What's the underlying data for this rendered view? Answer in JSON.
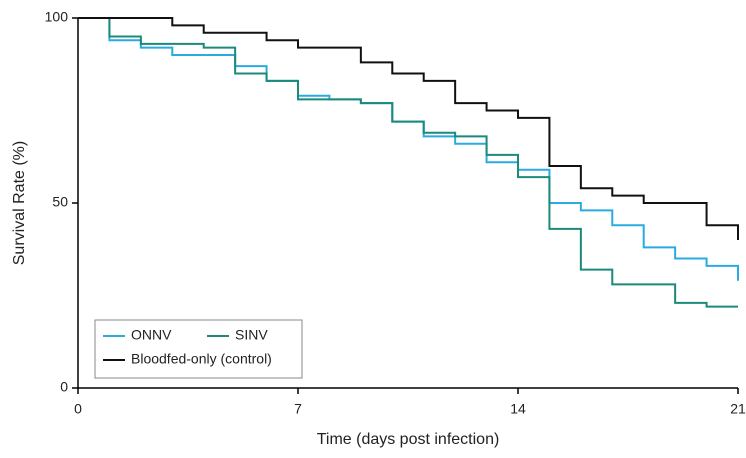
{
  "chart_data": {
    "type": "step",
    "xlabel": "Time (days post infection)",
    "ylabel": "Survival Rate (%)",
    "x": [
      0,
      1,
      2,
      3,
      4,
      5,
      6,
      7,
      8,
      9,
      10,
      11,
      12,
      13,
      14,
      15,
      16,
      17,
      18,
      19,
      20,
      21
    ],
    "xlim": [
      0,
      21
    ],
    "xticks": [
      0,
      7,
      14,
      21
    ],
    "ylim": [
      0,
      100
    ],
    "yticks": [
      0,
      50,
      100
    ],
    "series": [
      {
        "name": "ONNV",
        "color": "#29abe2",
        "values": [
          100,
          94,
          92,
          90,
          90,
          87,
          83,
          79,
          78,
          77,
          72,
          68,
          66,
          61,
          59,
          50,
          48,
          44,
          38,
          35,
          33,
          29
        ]
      },
      {
        "name": "SINV",
        "color": "#1b8a7a",
        "values": [
          100,
          95,
          93,
          93,
          92,
          85,
          83,
          78,
          78,
          77,
          72,
          69,
          68,
          63,
          57,
          43,
          32,
          28,
          28,
          23,
          22,
          22
        ]
      },
      {
        "name": "Bloodfed-only (control)",
        "color": "#111111",
        "values": [
          100,
          100,
          100,
          98,
          96,
          96,
          94,
          92,
          92,
          88,
          85,
          83,
          77,
          75,
          73,
          60,
          54,
          52,
          50,
          50,
          44,
          40
        ]
      }
    ],
    "legend": "lower left"
  }
}
